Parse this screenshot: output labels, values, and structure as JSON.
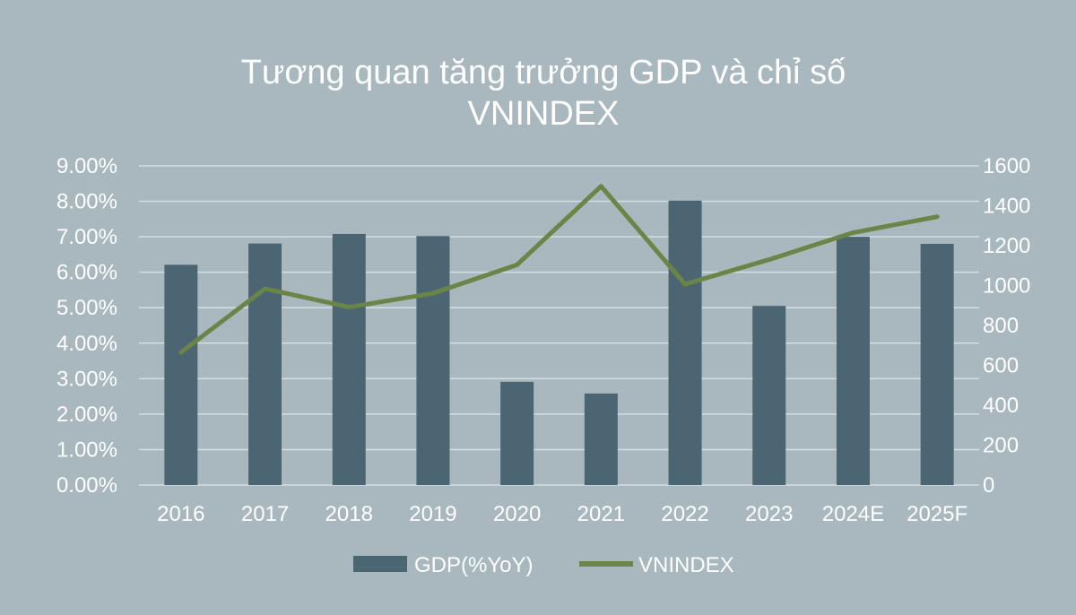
{
  "chart_data": {
    "type": "bar",
    "title_lines": [
      "Tương quan tăng trưởng GDP và chỉ số",
      "VNINDEX"
    ],
    "categories": [
      "2016",
      "2017",
      "2018",
      "2019",
      "2020",
      "2021",
      "2022",
      "2023",
      "2024E",
      "2025F"
    ],
    "series": [
      {
        "name": "GDP(%YoY)",
        "type": "bar",
        "axis": "left",
        "color": "#4b6573",
        "values": [
          6.21,
          6.81,
          7.08,
          7.02,
          2.91,
          2.58,
          8.02,
          5.05,
          7.0,
          6.8
        ]
      },
      {
        "name": "VNINDEX",
        "type": "line",
        "axis": "right",
        "color": "#6b8447",
        "values": [
          665,
          984,
          892,
          961,
          1104,
          1498,
          1007,
          1130,
          1265,
          1345
        ]
      }
    ],
    "y_left": {
      "min": 0,
      "max": 9,
      "step": 1,
      "tick_labels": [
        "0.00%",
        "1.00%",
        "2.00%",
        "3.00%",
        "4.00%",
        "5.00%",
        "6.00%",
        "7.00%",
        "8.00%",
        "9.00%"
      ]
    },
    "y_right": {
      "min": 0,
      "max": 1600,
      "step": 200,
      "tick_labels": [
        "0",
        "200",
        "400",
        "600",
        "800",
        "1000",
        "1200",
        "1400",
        "1600"
      ]
    },
    "grid": true,
    "grid_color": "#d4dde1",
    "legend_position": "bottom",
    "background": "#a9b8bf",
    "text_color": "#ffffff"
  }
}
